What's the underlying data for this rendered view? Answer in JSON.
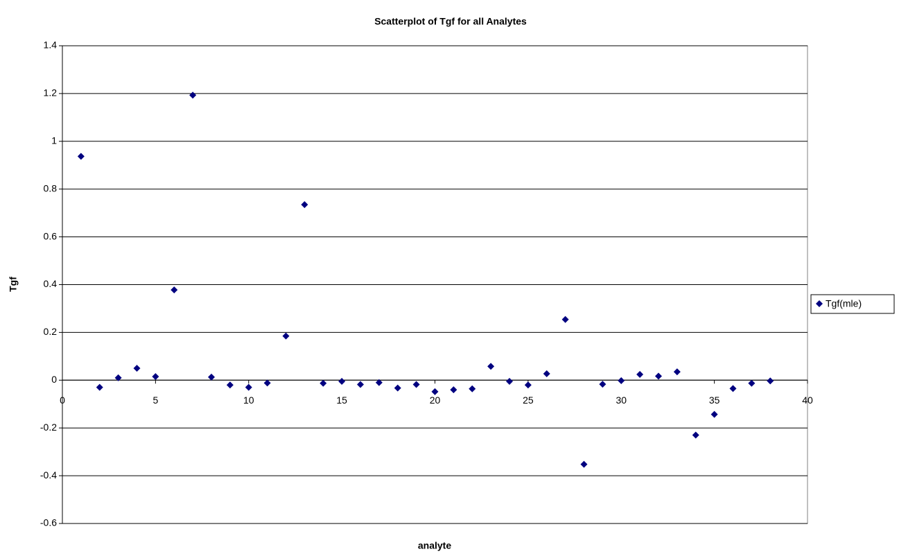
{
  "chart_data": {
    "type": "scatter",
    "title": "Scatterplot of Tgf for all Analytes",
    "x_label": "analyte",
    "y_label": "Tgf",
    "xlim": [
      0,
      40
    ],
    "xticks": [
      0,
      5,
      10,
      15,
      20,
      25,
      30,
      35,
      40
    ],
    "ylim": [
      -0.6,
      1.4
    ],
    "yticks": [
      -0.6,
      -0.4,
      -0.2,
      0,
      0.2,
      0.4,
      0.6,
      0.8,
      1,
      1.2,
      1.4
    ],
    "grid": true,
    "legend": "right",
    "series": [
      {
        "name": "Tgf(mle)",
        "color": "#000080",
        "x": [
          1,
          2,
          3,
          4,
          5,
          6,
          7,
          8,
          9,
          10,
          11,
          12,
          13,
          14,
          15,
          16,
          17,
          18,
          19,
          20,
          21,
          22,
          23,
          24,
          25,
          26,
          27,
          28,
          29,
          30,
          31,
          32,
          33,
          34,
          35,
          36,
          37,
          38
        ],
        "values": [
          0.937,
          -0.03,
          0.01,
          0.05,
          0.015,
          0.378,
          1.193,
          0.013,
          -0.02,
          -0.03,
          -0.012,
          0.185,
          0.735,
          -0.013,
          -0.005,
          -0.018,
          -0.01,
          -0.033,
          -0.018,
          -0.048,
          -0.04,
          -0.036,
          0.058,
          -0.005,
          -0.02,
          0.027,
          0.254,
          -0.352,
          -0.017,
          -0.002,
          0.024,
          0.017,
          0.035,
          -0.23,
          -0.143,
          -0.035,
          -0.013,
          -0.003
        ]
      }
    ]
  }
}
